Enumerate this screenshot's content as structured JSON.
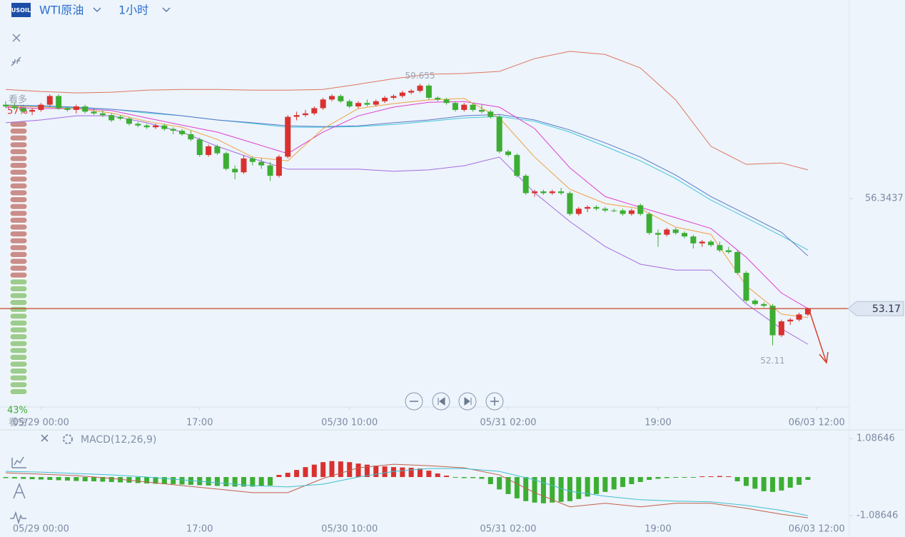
{
  "header": {
    "symbol": "USOIL",
    "instrument": "WTI原油",
    "interval": "1小时"
  },
  "sentiment": {
    "labels": [
      "看多",
      "看空"
    ],
    "values": [
      57,
      43
    ],
    "value_labels": [
      "57%",
      "43%"
    ],
    "colors": [
      "#c98e8a",
      "#9ccc8e"
    ]
  },
  "chart_data": [
    {
      "type": "candlestick",
      "up_color": "#d9312f",
      "down_color": "#3cae33",
      "xlim": [
        -0.65,
        95.7
      ],
      "ylim": [
        50.33,
        62.07
      ],
      "xticks": [
        {
          "value": 4,
          "label": "05/29 00:00"
        },
        {
          "value": 22,
          "label": "17:00"
        },
        {
          "value": 39,
          "label": "05/30 10:00"
        },
        {
          "value": 57,
          "label": "05/31 02:00"
        },
        {
          "value": 74,
          "label": "19:00"
        },
        {
          "value": 92,
          "label": "06/03 12:00"
        }
      ],
      "yticks": [
        56.3437
      ],
      "last_price": 53.17,
      "max_label": 59.655,
      "min_label": 52.11,
      "candles": [
        [
          59.05,
          59.15,
          58.95,
          59.0
        ],
        [
          59.0,
          59.1,
          58.9,
          58.95
        ],
        [
          58.95,
          59.05,
          58.8,
          58.85
        ],
        [
          58.85,
          58.95,
          58.75,
          58.9
        ],
        [
          58.9,
          59.1,
          58.85,
          59.05
        ],
        [
          59.05,
          59.35,
          59.0,
          59.3
        ],
        [
          59.3,
          59.35,
          58.9,
          58.95
        ],
        [
          58.95,
          59.0,
          58.85,
          58.9
        ],
        [
          58.9,
          59.05,
          58.8,
          59.0
        ],
        [
          59.0,
          59.05,
          58.8,
          58.85
        ],
        [
          58.85,
          58.95,
          58.75,
          58.8
        ],
        [
          58.8,
          58.9,
          58.7,
          58.75
        ],
        [
          58.75,
          58.8,
          58.55,
          58.6
        ],
        [
          58.7,
          58.75,
          58.6,
          58.65
        ],
        [
          58.65,
          58.7,
          58.45,
          58.5
        ],
        [
          58.5,
          58.55,
          58.4,
          58.45
        ],
        [
          58.45,
          58.5,
          58.35,
          58.4
        ],
        [
          58.4,
          58.5,
          58.35,
          58.45
        ],
        [
          58.45,
          58.5,
          58.3,
          58.35
        ],
        [
          58.35,
          58.4,
          58.2,
          58.3
        ],
        [
          58.3,
          58.35,
          58.15,
          58.2
        ],
        [
          58.2,
          58.3,
          58.0,
          58.05
        ],
        [
          58.05,
          58.1,
          57.55,
          57.6
        ],
        [
          57.6,
          57.9,
          57.55,
          57.85
        ],
        [
          57.85,
          57.9,
          57.6,
          57.65
        ],
        [
          57.65,
          57.7,
          57.15,
          57.2
        ],
        [
          57.2,
          57.3,
          56.9,
          57.1
        ],
        [
          57.1,
          57.6,
          57.05,
          57.5
        ],
        [
          57.5,
          57.55,
          57.3,
          57.4
        ],
        [
          57.4,
          57.5,
          57.2,
          57.3
        ],
        [
          57.3,
          57.4,
          56.85,
          57.0
        ],
        [
          57.0,
          57.6,
          56.95,
          57.55
        ],
        [
          57.55,
          58.75,
          57.5,
          58.7
        ],
        [
          58.7,
          58.85,
          58.6,
          58.75
        ],
        [
          58.75,
          58.9,
          58.7,
          58.8
        ],
        [
          58.8,
          59.0,
          58.75,
          58.95
        ],
        [
          58.95,
          59.25,
          58.9,
          59.2
        ],
        [
          59.2,
          59.35,
          59.15,
          59.3
        ],
        [
          59.3,
          59.35,
          59.1,
          59.15
        ],
        [
          59.15,
          59.2,
          58.95,
          59.0
        ],
        [
          59.0,
          59.15,
          58.95,
          59.1
        ],
        [
          59.1,
          59.2,
          59.0,
          59.05
        ],
        [
          59.05,
          59.2,
          59.0,
          59.15
        ],
        [
          59.15,
          59.3,
          59.1,
          59.25
        ],
        [
          59.25,
          59.35,
          59.2,
          59.3
        ],
        [
          59.3,
          59.45,
          59.25,
          59.4
        ],
        [
          59.4,
          59.5,
          59.35,
          59.45
        ],
        [
          59.45,
          59.655,
          59.4,
          59.6
        ],
        [
          59.6,
          59.65,
          59.2,
          59.25
        ],
        [
          59.25,
          59.3,
          59.15,
          59.2
        ],
        [
          59.2,
          59.25,
          59.05,
          59.1
        ],
        [
          59.1,
          59.15,
          58.85,
          58.9
        ],
        [
          58.9,
          59.1,
          58.85,
          59.05
        ],
        [
          59.05,
          59.1,
          58.85,
          58.9
        ],
        [
          58.9,
          59.05,
          58.8,
          58.85
        ],
        [
          58.85,
          58.9,
          58.65,
          58.7
        ],
        [
          58.7,
          58.75,
          57.65,
          57.7
        ],
        [
          57.7,
          57.75,
          57.55,
          57.6
        ],
        [
          57.6,
          57.65,
          56.95,
          57.0
        ],
        [
          57.0,
          57.05,
          56.45,
          56.5
        ],
        [
          56.5,
          56.6,
          56.4,
          56.55
        ],
        [
          56.55,
          56.6,
          56.45,
          56.5
        ],
        [
          56.5,
          56.6,
          56.45,
          56.55
        ],
        [
          56.55,
          56.65,
          56.45,
          56.5
        ],
        [
          56.5,
          56.55,
          55.85,
          55.9
        ],
        [
          55.9,
          56.1,
          55.85,
          56.05
        ],
        [
          56.05,
          56.15,
          55.95,
          56.1
        ],
        [
          56.1,
          56.15,
          56.0,
          56.05
        ],
        [
          56.05,
          56.1,
          55.95,
          56.0
        ],
        [
          56.0,
          56.05,
          55.95,
          55.98
        ],
        [
          56.0,
          56.05,
          55.85,
          55.9
        ],
        [
          55.9,
          56.05,
          55.85,
          56.0
        ],
        [
          56.15,
          56.2,
          55.85,
          55.9
        ],
        [
          55.9,
          55.95,
          55.3,
          55.35
        ],
        [
          55.35,
          55.45,
          54.95,
          55.3
        ],
        [
          55.3,
          55.5,
          55.25,
          55.45
        ],
        [
          55.45,
          55.5,
          55.3,
          55.35
        ],
        [
          55.35,
          55.4,
          55.2,
          55.25
        ],
        [
          55.25,
          55.3,
          54.9,
          55.05
        ],
        [
          55.05,
          55.15,
          54.95,
          55.1
        ],
        [
          55.1,
          55.15,
          54.95,
          55.0
        ],
        [
          55.0,
          55.1,
          54.8,
          54.85
        ],
        [
          54.85,
          54.95,
          54.75,
          54.8
        ],
        [
          54.8,
          54.85,
          54.15,
          54.2
        ],
        [
          54.2,
          54.25,
          53.35,
          53.4
        ],
        [
          53.4,
          53.45,
          53.25,
          53.3
        ],
        [
          53.3,
          53.35,
          53.2,
          53.25
        ],
        [
          53.25,
          53.3,
          52.11,
          52.4
        ],
        [
          52.4,
          52.85,
          52.35,
          52.8
        ],
        [
          52.8,
          52.9,
          52.7,
          52.85
        ],
        [
          52.85,
          53.05,
          52.8,
          53.0
        ],
        [
          53.0,
          53.2,
          52.95,
          53.17
        ]
      ],
      "overlay_x": [
        0,
        4,
        8,
        12,
        16,
        20,
        24,
        28,
        32,
        36,
        40,
        44,
        48,
        52,
        56,
        60,
        64,
        68,
        72,
        76,
        80,
        84,
        88,
        91
      ],
      "overlays": [
        {
          "color": "#e07560",
          "values": [
            59.49,
            59.43,
            59.39,
            59.41,
            59.47,
            59.49,
            59.49,
            59.47,
            59.47,
            59.49,
            59.64,
            59.8,
            59.93,
            59.95,
            60.01,
            60.38,
            60.59,
            60.5,
            60.11,
            59.19,
            57.85,
            57.33,
            57.37,
            57.17
          ]
        },
        {
          "color": "#a66be0",
          "values": [
            58.53,
            58.61,
            58.73,
            58.73,
            58.53,
            58.26,
            57.85,
            57.5,
            57.19,
            57.19,
            57.19,
            57.13,
            57.17,
            57.29,
            57.54,
            56.51,
            55.68,
            54.96,
            54.45,
            54.28,
            54.28,
            53.31,
            52.59,
            52.14
          ]
        },
        {
          "color": "#40c8d8",
          "values": [
            59.02,
            59.0,
            58.96,
            58.92,
            58.81,
            58.73,
            58.61,
            58.51,
            58.4,
            58.4,
            58.42,
            58.48,
            58.57,
            58.67,
            58.71,
            58.57,
            58.26,
            57.85,
            57.43,
            56.92,
            56.3,
            55.79,
            55.27,
            54.86
          ]
        },
        {
          "color": "#5b78c8",
          "values": [
            59.04,
            59.02,
            58.98,
            58.92,
            58.84,
            58.73,
            58.61,
            58.53,
            58.44,
            58.42,
            58.44,
            58.53,
            58.61,
            58.73,
            58.77,
            58.61,
            58.32,
            57.95,
            57.54,
            57.02,
            56.4,
            55.89,
            55.37,
            54.69
          ]
        },
        {
          "color": "#e040d0",
          "values": [
            58.98,
            58.94,
            58.94,
            58.88,
            58.67,
            58.46,
            58.26,
            57.95,
            57.64,
            58.26,
            58.73,
            58.98,
            59.12,
            59.14,
            58.98,
            58.36,
            57.23,
            56.4,
            56.09,
            55.79,
            55.48,
            54.65,
            53.62,
            53.17
          ]
        },
        {
          "color": "#f0a040",
          "values": [
            59.02,
            58.98,
            58.94,
            58.81,
            58.57,
            58.4,
            58.05,
            57.54,
            57.43,
            58.36,
            58.94,
            59.08,
            59.19,
            59.23,
            58.67,
            57.54,
            56.61,
            56.2,
            56.05,
            55.52,
            55.31,
            53.83,
            53.01,
            52.91
          ]
        }
      ]
    },
    {
      "type": "macd",
      "title": "MACD(12,26,9)",
      "ylim": [
        -1.55,
        1.37
      ],
      "yticks": [
        1.08646,
        -1.08646
      ],
      "histogram": [
        -0.03,
        -0.04,
        -0.05,
        -0.06,
        -0.07,
        -0.08,
        -0.09,
        -0.1,
        -0.11,
        -0.12,
        -0.12,
        -0.13,
        -0.14,
        -0.15,
        -0.16,
        -0.17,
        -0.18,
        -0.19,
        -0.2,
        -0.2,
        -0.21,
        -0.22,
        -0.23,
        -0.24,
        -0.25,
        -0.26,
        -0.27,
        -0.27,
        -0.27,
        -0.26,
        -0.24,
        0.06,
        0.12,
        0.2,
        0.28,
        0.35,
        0.42,
        0.45,
        0.44,
        0.42,
        0.38,
        0.35,
        0.32,
        0.3,
        0.28,
        0.27,
        0.26,
        0.24,
        0.18,
        0.1,
        0.04,
        -0.02,
        -0.03,
        -0.03,
        -0.05,
        -0.2,
        -0.35,
        -0.48,
        -0.6,
        -0.68,
        -0.72,
        -0.74,
        -0.72,
        -0.7,
        -0.68,
        -0.62,
        -0.55,
        -0.48,
        -0.42,
        -0.35,
        -0.28,
        -0.2,
        -0.14,
        -0.08,
        -0.05,
        -0.03,
        -0.02,
        -0.02,
        -0.02,
        0.02,
        0.02,
        0.03,
        0.02,
        -0.12,
        -0.25,
        -0.33,
        -0.4,
        -0.42,
        -0.38,
        -0.3,
        -0.22,
        -0.08
      ],
      "lines": [
        {
          "color": "#c0604a",
          "values": [
            0.12,
            0.08,
            0.04,
            -0.04,
            -0.14,
            -0.24,
            -0.34,
            -0.44,
            -0.44,
            -0.04,
            0.26,
            0.36,
            0.32,
            0.26,
            0.06,
            -0.44,
            -0.84,
            -0.74,
            -0.84,
            -0.74,
            -0.74,
            -0.88,
            -1.05,
            -1.15
          ]
        },
        {
          "color": "#40c0d0",
          "values": [
            0.16,
            0.14,
            0.1,
            0.06,
            0,
            -0.08,
            -0.16,
            -0.24,
            -0.28,
            -0.2,
            0,
            0.16,
            0.24,
            0.24,
            0.16,
            -0.08,
            -0.4,
            -0.54,
            -0.64,
            -0.68,
            -0.7,
            -0.8,
            -0.94,
            -1.09
          ]
        }
      ]
    }
  ]
}
